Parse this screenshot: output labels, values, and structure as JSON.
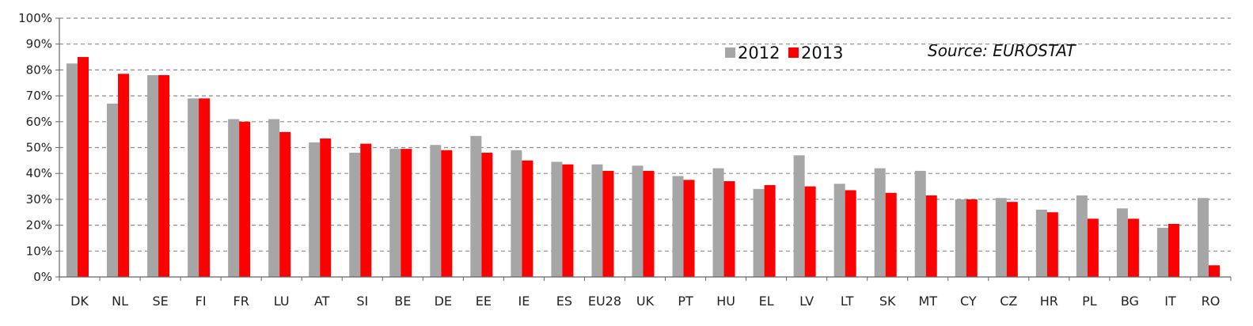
{
  "chart_data": {
    "type": "bar",
    "title": "",
    "xlabel": "",
    "ylabel": "",
    "ylim": [
      0,
      100
    ],
    "y_ticks": [
      "0%",
      "10%",
      "20%",
      "30%",
      "40%",
      "50%",
      "60%",
      "70%",
      "80%",
      "90%",
      "100%"
    ],
    "grid": true,
    "legend_position": "top-right",
    "source_text": "Source: EUROSTAT",
    "categories": [
      "DK",
      "NL",
      "SE",
      "FI",
      "FR",
      "LU",
      "AT",
      "SI",
      "BE",
      "DE",
      "EE",
      "IE",
      "ES",
      "EU28",
      "UK",
      "PT",
      "HU",
      "EL",
      "LV",
      "LT",
      "SK",
      "MT",
      "CY",
      "CZ",
      "HR",
      "PL",
      "BG",
      "IT",
      "RO"
    ],
    "series": [
      {
        "name": "2012",
        "color": "#a6a6a6",
        "values": [
          82.5,
          67,
          78,
          69,
          61,
          61,
          52,
          48,
          49.5,
          51,
          54.5,
          49,
          44.5,
          43.5,
          43,
          39,
          42,
          34,
          47,
          36,
          42,
          41,
          30,
          30.5,
          26,
          31.5,
          26.5,
          19,
          30.5
        ]
      },
      {
        "name": "2013",
        "color": "#ff0000",
        "values": [
          85,
          78.5,
          78,
          69,
          60,
          56,
          53.5,
          51.5,
          49.5,
          49,
          48,
          45,
          43.5,
          41,
          41,
          37.5,
          37,
          35.5,
          35,
          33.5,
          32.5,
          31.5,
          30,
          29,
          25,
          22.5,
          22.5,
          20.5,
          4.5
        ]
      }
    ]
  }
}
